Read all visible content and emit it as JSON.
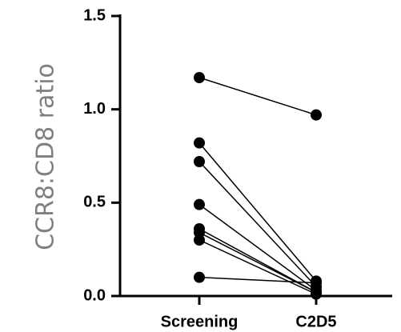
{
  "chart_data": {
    "type": "scatter",
    "title": "",
    "xlabel": "",
    "ylabel": "CCR8:CD8 ratio",
    "categories": [
      "Screening",
      "C2D5"
    ],
    "ylim": [
      0,
      1.5
    ],
    "yticks": [
      "0.0",
      "0.5",
      "1.0",
      "1.5"
    ],
    "grid": false,
    "pairs": [
      {
        "values": [
          1.17,
          0.97
        ]
      },
      {
        "values": [
          0.82,
          0.08
        ]
      },
      {
        "values": [
          0.72,
          0.05
        ]
      },
      {
        "values": [
          0.49,
          0.03
        ]
      },
      {
        "values": [
          0.36,
          0.02
        ]
      },
      {
        "values": [
          0.34,
          0.02
        ]
      },
      {
        "values": [
          0.3,
          0.01
        ]
      },
      {
        "values": [
          0.1,
          0.07
        ]
      }
    ],
    "colors": {
      "points": "#000000",
      "axis": "#000000",
      "ylabel": "#7f7f7f"
    }
  }
}
